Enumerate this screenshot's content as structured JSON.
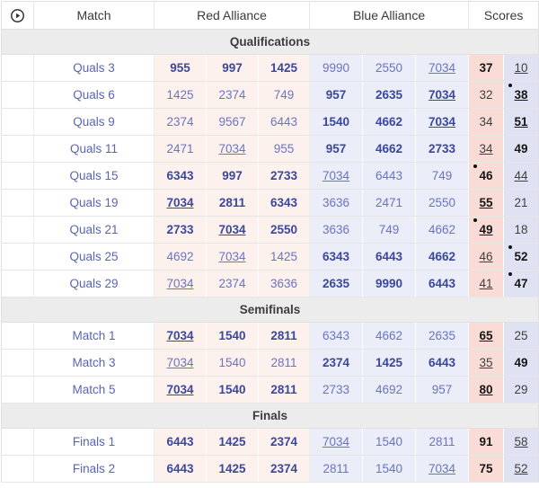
{
  "table": {
    "watch_icon": "play-circle-icon",
    "columns": {
      "match": "Match",
      "red": "Red Alliance",
      "blue": "Blue Alliance",
      "scores": "Scores"
    },
    "underline_team": "7034",
    "colors": {
      "red_alliance_bg": "#fdf1ee",
      "blue_alliance_bg": "#ebedf8",
      "red_score_bg": "#fadcd7",
      "blue_score_bg": "#dfe2f3",
      "team_link": "#6a74c0",
      "team_winner": "#3a479c",
      "section_bg": "#ececec"
    },
    "sections": [
      {
        "title": "Qualifications",
        "matches": [
          {
            "label": "Quals 3",
            "red_teams": [
              "955",
              "997",
              "1425"
            ],
            "blue_teams": [
              "9990",
              "2550",
              "7034"
            ],
            "red_score": "37",
            "blue_score": "10",
            "winner": "red",
            "underline_alliance": "blue",
            "red_dot": false,
            "blue_dot": false
          },
          {
            "label": "Quals 6",
            "red_teams": [
              "1425",
              "2374",
              "749"
            ],
            "blue_teams": [
              "957",
              "2635",
              "7034"
            ],
            "red_score": "32",
            "blue_score": "38",
            "winner": "blue",
            "underline_alliance": "blue",
            "red_dot": false,
            "blue_dot": true
          },
          {
            "label": "Quals 9",
            "red_teams": [
              "2374",
              "9567",
              "6443"
            ],
            "blue_teams": [
              "1540",
              "4662",
              "7034"
            ],
            "red_score": "34",
            "blue_score": "51",
            "winner": "blue",
            "underline_alliance": "blue",
            "red_dot": false,
            "blue_dot": false
          },
          {
            "label": "Quals 11",
            "red_teams": [
              "2471",
              "7034",
              "955"
            ],
            "blue_teams": [
              "957",
              "4662",
              "2733"
            ],
            "red_score": "34",
            "blue_score": "49",
            "winner": "blue",
            "underline_alliance": "red",
            "red_dot": false,
            "blue_dot": false
          },
          {
            "label": "Quals 15",
            "red_teams": [
              "6343",
              "997",
              "2733"
            ],
            "blue_teams": [
              "7034",
              "6443",
              "749"
            ],
            "red_score": "46",
            "blue_score": "44",
            "winner": "red",
            "underline_alliance": "blue",
            "red_dot": true,
            "blue_dot": false
          },
          {
            "label": "Quals 19",
            "red_teams": [
              "7034",
              "2811",
              "6343"
            ],
            "blue_teams": [
              "3636",
              "2471",
              "2550"
            ],
            "red_score": "55",
            "blue_score": "21",
            "winner": "red",
            "underline_alliance": "red",
            "red_dot": false,
            "blue_dot": false
          },
          {
            "label": "Quals 21",
            "red_teams": [
              "2733",
              "7034",
              "2550"
            ],
            "blue_teams": [
              "3636",
              "749",
              "4662"
            ],
            "red_score": "49",
            "blue_score": "18",
            "winner": "red",
            "underline_alliance": "red",
            "red_dot": true,
            "blue_dot": false
          },
          {
            "label": "Quals 25",
            "red_teams": [
              "4692",
              "7034",
              "1425"
            ],
            "blue_teams": [
              "6343",
              "6443",
              "4662"
            ],
            "red_score": "46",
            "blue_score": "52",
            "winner": "blue",
            "underline_alliance": "red",
            "red_dot": false,
            "blue_dot": true
          },
          {
            "label": "Quals 29",
            "red_teams": [
              "7034",
              "2374",
              "3636"
            ],
            "blue_teams": [
              "2635",
              "9990",
              "6443"
            ],
            "red_score": "41",
            "blue_score": "47",
            "winner": "blue",
            "underline_alliance": "red",
            "red_dot": false,
            "blue_dot": true
          }
        ]
      },
      {
        "title": "Semifinals",
        "matches": [
          {
            "label": "Match 1",
            "red_teams": [
              "7034",
              "1540",
              "2811"
            ],
            "blue_teams": [
              "6343",
              "4662",
              "2635"
            ],
            "red_score": "65",
            "blue_score": "25",
            "winner": "red",
            "underline_alliance": "red",
            "red_dot": false,
            "blue_dot": false
          },
          {
            "label": "Match 3",
            "red_teams": [
              "7034",
              "1540",
              "2811"
            ],
            "blue_teams": [
              "2374",
              "1425",
              "6443"
            ],
            "red_score": "35",
            "blue_score": "49",
            "winner": "blue",
            "underline_alliance": "red",
            "red_dot": false,
            "blue_dot": false
          },
          {
            "label": "Match 5",
            "red_teams": [
              "7034",
              "1540",
              "2811"
            ],
            "blue_teams": [
              "2733",
              "4692",
              "957"
            ],
            "red_score": "80",
            "blue_score": "29",
            "winner": "red",
            "underline_alliance": "red",
            "red_dot": false,
            "blue_dot": false
          }
        ]
      },
      {
        "title": "Finals",
        "matches": [
          {
            "label": "Finals 1",
            "red_teams": [
              "6443",
              "1425",
              "2374"
            ],
            "blue_teams": [
              "7034",
              "1540",
              "2811"
            ],
            "red_score": "91",
            "blue_score": "58",
            "winner": "red",
            "underline_alliance": "blue",
            "red_dot": false,
            "blue_dot": false
          },
          {
            "label": "Finals 2",
            "red_teams": [
              "6443",
              "1425",
              "2374"
            ],
            "blue_teams": [
              "2811",
              "1540",
              "7034"
            ],
            "red_score": "75",
            "blue_score": "52",
            "winner": "red",
            "underline_alliance": "blue",
            "red_dot": false,
            "blue_dot": false
          }
        ]
      }
    ]
  }
}
